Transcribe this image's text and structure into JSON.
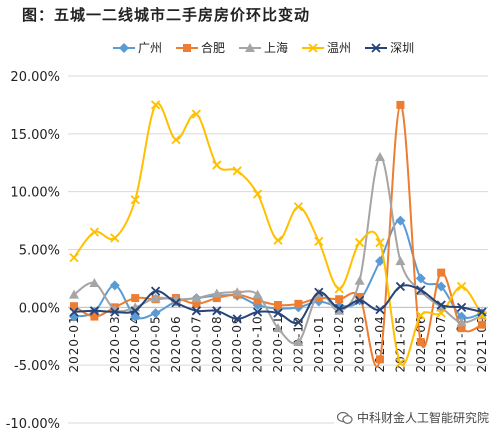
{
  "title": "图：五城一二线城市二手房房价环比变动",
  "watermark": "中科财金人工智能研究院",
  "chart_data": {
    "type": "line",
    "title": "图：五城一二线城市二手房房价环比变动",
    "xlabel": "",
    "ylabel": "",
    "ylim": [
      -10,
      20
    ],
    "yticks": [
      "20.00%",
      "15.00%",
      "10.00%",
      "5.00%",
      "0.00%",
      "-5.00%",
      "-10.00%"
    ],
    "legend_position": "top",
    "grid": "horizontal",
    "categories": [
      "2020-01",
      "2020-02",
      "2020-03",
      "2020-04",
      "2020-05",
      "2020-06",
      "2020-07",
      "2020-08",
      "2020-09",
      "2020-10",
      "2020-11",
      "2020-12",
      "2021-01",
      "2021-02",
      "2021-03",
      "2021-04",
      "2021-05",
      "2021-06",
      "2021-07",
      "2021-08",
      "2021-09"
    ],
    "xtick_labels": [
      "2020-01",
      "2020-03",
      "2020-04",
      "2020-05",
      "2020-06",
      "2020-07",
      "2020-08",
      "2020-09",
      "2020-10",
      "2020-11",
      "2020-12",
      "2021-01",
      "2021-02",
      "2021-03",
      "2021-04",
      "2021-05",
      "2021-06",
      "2021-07",
      "2021-08",
      "2021-09"
    ],
    "xtick_indices": [
      0,
      2,
      3,
      4,
      5,
      6,
      7,
      8,
      9,
      10,
      11,
      12,
      13,
      14,
      15,
      16,
      17,
      18,
      19,
      20
    ],
    "series": [
      {
        "name": "广州",
        "color": "#5b9bd5",
        "marker": "diamond",
        "values": [
          -0.8,
          -0.4,
          1.9,
          -0.8,
          -0.5,
          0.5,
          0.8,
          1.0,
          1.0,
          0.2,
          -0.1,
          0.0,
          0.5,
          0.1,
          0.6,
          4.0,
          7.5,
          2.5,
          1.8,
          -0.8,
          -0.5
        ]
      },
      {
        "name": "合肥",
        "color": "#ed7d31",
        "marker": "square",
        "values": [
          0.1,
          -0.8,
          0.0,
          0.8,
          0.7,
          0.8,
          0.3,
          0.8,
          1.1,
          0.6,
          0.2,
          0.3,
          0.8,
          0.7,
          0.9,
          -4.5,
          17.5,
          -3.0,
          3.0,
          -1.8,
          -1.5
        ]
      },
      {
        "name": "上海",
        "color": "#a5a5a5",
        "marker": "triangle",
        "values": [
          1.1,
          2.1,
          -0.2,
          0.0,
          0.8,
          0.7,
          0.8,
          1.2,
          1.3,
          1.1,
          -1.8,
          -3.0,
          1.2,
          -0.3,
          2.3,
          13.0,
          4.0,
          1.4,
          0.0,
          -1.3,
          -0.7
        ]
      },
      {
        "name": "温州",
        "color": "#ffc000",
        "marker": "x",
        "values": [
          4.3,
          6.5,
          6.0,
          9.3,
          17.5,
          14.5,
          16.7,
          12.3,
          11.8,
          9.8,
          5.8,
          8.7,
          5.7,
          1.6,
          5.6,
          5.6,
          -4.8,
          -0.7,
          -0.5,
          1.8,
          -0.7
        ]
      },
      {
        "name": "深圳",
        "color": "#264478",
        "marker": "x",
        "values": [
          -0.4,
          -0.3,
          -0.4,
          -0.3,
          1.4,
          0.4,
          -0.3,
          -0.3,
          -1.0,
          -0.4,
          -0.5,
          -1.3,
          1.3,
          -0.1,
          0.6,
          -0.2,
          1.8,
          1.5,
          0.2,
          0.0,
          -0.4
        ]
      }
    ]
  }
}
